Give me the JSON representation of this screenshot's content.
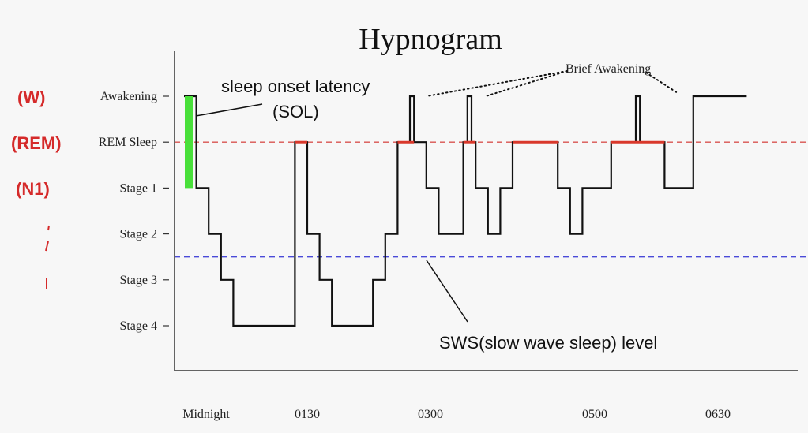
{
  "chart_data": {
    "type": "line",
    "title": "Hypnogram",
    "x_tick_labels": [
      "Midnight",
      "0130",
      "0300",
      "0500",
      "0630"
    ],
    "x_tick_values": [
      0,
      1.5,
      3,
      5,
      6.5
    ],
    "xlim": [
      0,
      7
    ],
    "y_levels": [
      "Awakening",
      "REM Sleep",
      "Stage 1",
      "Stage 2",
      "Stage 3",
      "Stage 4"
    ],
    "y_level_values": [
      0,
      1,
      2,
      3,
      4,
      5
    ],
    "series": [
      {
        "steps": [
          {
            "t": 0.0,
            "stage": 0
          },
          {
            "t": 0.15,
            "stage": 2
          },
          {
            "t": 0.3,
            "stage": 3
          },
          {
            "t": 0.45,
            "stage": 4
          },
          {
            "t": 0.6,
            "stage": 5
          },
          {
            "t": 1.35,
            "stage": 1
          },
          {
            "t": 1.5,
            "stage": 3
          },
          {
            "t": 1.65,
            "stage": 4
          },
          {
            "t": 1.8,
            "stage": 5
          },
          {
            "t": 2.3,
            "stage": 4
          },
          {
            "t": 2.45,
            "stage": 3
          },
          {
            "t": 2.6,
            "stage": 1
          },
          {
            "t": 2.75,
            "stage": 0
          },
          {
            "t": 2.8,
            "stage": 1
          },
          {
            "t": 2.95,
            "stage": 2
          },
          {
            "t": 3.1,
            "stage": 3
          },
          {
            "t": 3.4,
            "stage": 1
          },
          {
            "t": 3.45,
            "stage": 0
          },
          {
            "t": 3.5,
            "stage": 1
          },
          {
            "t": 3.55,
            "stage": 2
          },
          {
            "t": 3.7,
            "stage": 3
          },
          {
            "t": 3.85,
            "stage": 2
          },
          {
            "t": 4.0,
            "stage": 1
          },
          {
            "t": 4.55,
            "stage": 2
          },
          {
            "t": 4.7,
            "stage": 3
          },
          {
            "t": 4.85,
            "stage": 2
          },
          {
            "t": 5.2,
            "stage": 1
          },
          {
            "t": 5.5,
            "stage": 0
          },
          {
            "t": 5.55,
            "stage": 1
          },
          {
            "t": 5.85,
            "stage": 2
          },
          {
            "t": 6.2,
            "stage": 0
          },
          {
            "t": 6.85,
            "stage": 0
          }
        ]
      }
    ],
    "rem_segments": [
      [
        1.35,
        1.5
      ],
      [
        2.6,
        2.8
      ],
      [
        3.4,
        3.55
      ],
      [
        4.0,
        4.55
      ],
      [
        5.2,
        5.85
      ]
    ],
    "sol_range": [
      0.0,
      0.15
    ],
    "reference_lines": [
      {
        "level": 1,
        "style": "dashed",
        "color": "#d9534f"
      },
      {
        "level": 3.5,
        "style": "dashed",
        "color": "#4a4ad8"
      }
    ],
    "annotations": {
      "sol": [
        "sleep onset latency",
        "(SOL)"
      ],
      "brief_awakening": "Brief Awakening",
      "sws": "SWS(slow wave sleep) level"
    },
    "handwritten_labels": [
      "(W)",
      "(REM)",
      "(N1)"
    ]
  },
  "colors": {
    "line": "#111111",
    "rem": "#d9382b",
    "sol": "#49e03a",
    "rem_ref": "#d9534f",
    "sws_ref": "#4a4ad8",
    "marker": "#d52a2a"
  }
}
